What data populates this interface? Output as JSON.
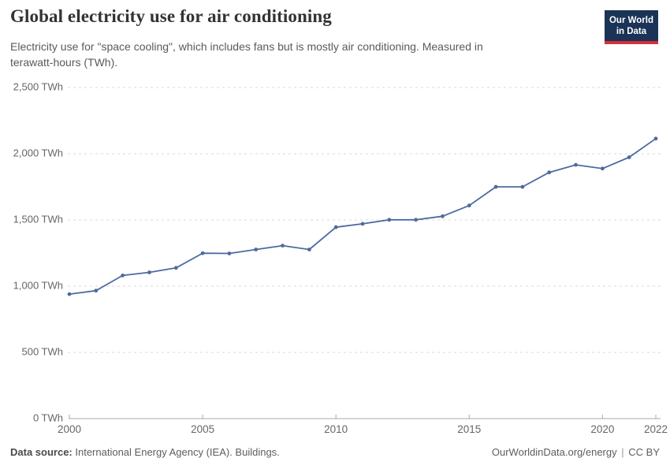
{
  "header": {
    "title": "Global electricity use for air conditioning",
    "subtitle": "Electricity use for \"space cooling\", which includes fans but is mostly air conditioning. Measured in terawatt-hours (TWh)."
  },
  "logo": {
    "line1": "Our World",
    "line2": "in Data",
    "bg_color": "#1a3356",
    "stripe_color": "#d2303a"
  },
  "footer": {
    "source_label": "Data source:",
    "source_text": "International Energy Agency (IEA). Buildings.",
    "link": "OurWorldinData.org/energy",
    "separator": "|",
    "license": "CC BY"
  },
  "chart_data": {
    "type": "line",
    "title": "Global electricity use for air conditioning",
    "unit": "TWh",
    "x": [
      2000,
      2001,
      2002,
      2003,
      2004,
      2005,
      2006,
      2007,
      2008,
      2009,
      2010,
      2011,
      2012,
      2013,
      2014,
      2015,
      2016,
      2017,
      2018,
      2019,
      2020,
      2021,
      2022
    ],
    "values": [
      940,
      966,
      1081,
      1104,
      1138,
      1249,
      1247,
      1277,
      1306,
      1277,
      1445,
      1471,
      1501,
      1501,
      1528,
      1609,
      1750,
      1750,
      1859,
      1916,
      1888,
      1973,
      2114
    ],
    "ylim": [
      0,
      2500
    ],
    "ytick_step": 500,
    "ytick_labels": [
      "0 TWh",
      "500 TWh",
      "1,000 TWh",
      "1,500 TWh",
      "2,000 TWh",
      "2,500 TWh"
    ],
    "xticks": [
      2000,
      2005,
      2010,
      2015,
      2020,
      2022
    ],
    "grid": "horizontal-dashed",
    "legend": "none",
    "marker": "circle",
    "colors": {
      "line": "#4c6ba0",
      "grid": "#d8d8d8",
      "axis": "#a8a8a8",
      "tick_label": "#666666"
    }
  }
}
